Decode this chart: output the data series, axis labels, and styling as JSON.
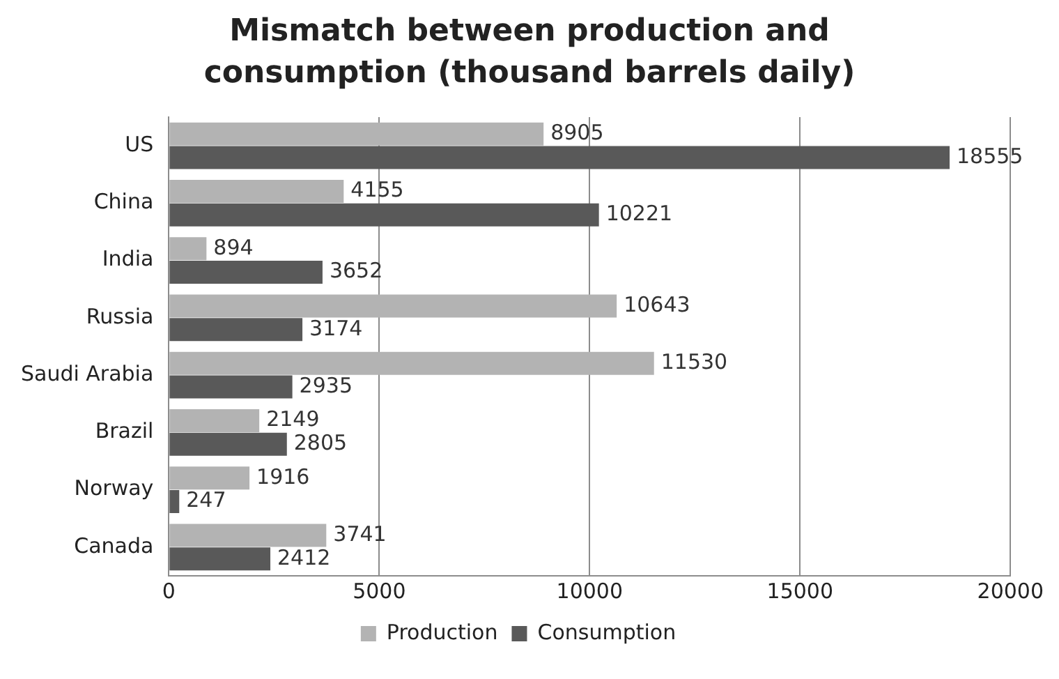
{
  "chart_data": {
    "type": "bar",
    "orientation": "horizontal",
    "title": "Mismatch between production and consumption (thousand barrels daily)",
    "categories": [
      "US",
      "China",
      "India",
      "Russia",
      "Saudi Arabia",
      "Brazil",
      "Norway",
      "Canada"
    ],
    "series": [
      {
        "name": "Production",
        "color": "#b3b3b3",
        "values": [
          8905,
          4155,
          894,
          10643,
          11530,
          2149,
          1916,
          3741
        ]
      },
      {
        "name": "Consumption",
        "color": "#595959",
        "values": [
          18555,
          10221,
          3652,
          3174,
          2935,
          2805,
          247,
          2412
        ]
      }
    ],
    "xlim": [
      0,
      20000
    ],
    "xticks": [
      0,
      5000,
      10000,
      15000,
      20000
    ],
    "grid": "x",
    "legend": "bottom",
    "data_labels": true
  }
}
